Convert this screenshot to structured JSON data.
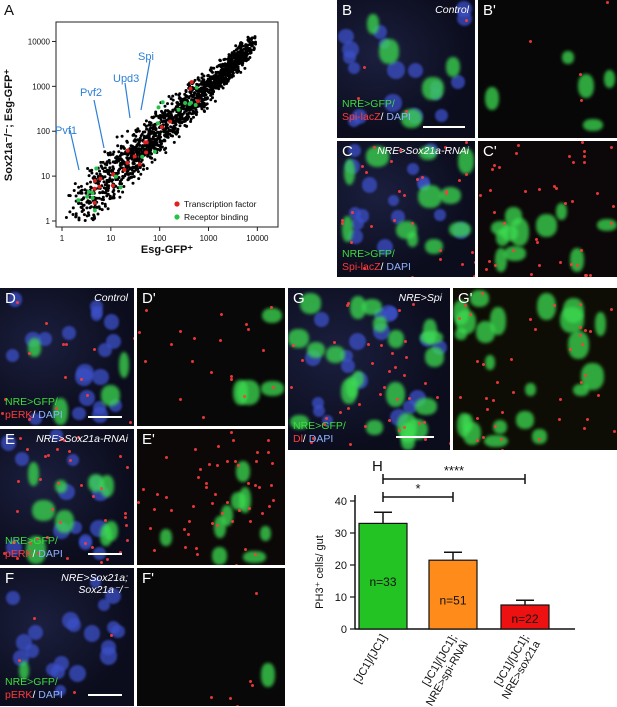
{
  "labels": {
    "A": "A",
    "B": "B",
    "Bp": "B'",
    "C": "C",
    "Cp": "C'",
    "D": "D",
    "Dp": "D'",
    "E": "E",
    "Ep": "E'",
    "F": "F",
    "Fp": "F'",
    "G": "G",
    "Gp": "G'",
    "H": "H"
  },
  "conditions": {
    "control": "Control",
    "sox21a_rnai": "NRE>Sox21a-RNAi",
    "sox21a_line1": "NRE>Sox21a;",
    "sox21a_line2": "Sox21a⁻/⁻",
    "spi": "NRE>Spi"
  },
  "stains": {
    "gfp": "NRE>GFP/",
    "spi_lacz": "Spi-lacZ",
    "perk": "pERK",
    "dl": "Dl",
    "dapi": "DAPI",
    "sep": "/ "
  },
  "colors": {
    "green": "#3ddc3d",
    "red": "#ff3a3a",
    "blue": "#8fb3ff",
    "tf": "#e0221f",
    "rb": "#27c24a",
    "bar1": "#22c322",
    "bar2": "#ff8c1a",
    "bar3": "#ee1111"
  },
  "scatter": {
    "ylabel": "Sox21a⁻/⁻; Esg-GFP⁺",
    "xlabel": "Esg-GFP⁺",
    "xticks": [
      "1",
      "10",
      "100",
      "1000",
      "10000"
    ],
    "yticks": [
      "1",
      "10",
      "100",
      "1000",
      "10000"
    ],
    "annotations": [
      "Pvf1",
      "Pvf2",
      "Upd3",
      "Spi"
    ],
    "legend": [
      "Transcription factor",
      "Receptor binding"
    ]
  },
  "chart_data": {
    "type": "bar",
    "ylabel": "PH3⁺ cells/ gut",
    "categories": [
      "[JC1]/[JC1]",
      "[JC1]/[JC1];",
      "[JC1]/[JC1];"
    ],
    "category_sublabels": [
      "",
      "NRE>spi-RNAi",
      "NRE>sox21a"
    ],
    "values": [
      33,
      21.5,
      7.5
    ],
    "errors": [
      3.5,
      2.5,
      1.5
    ],
    "n_labels": [
      "n=33",
      "n=51",
      "n=22"
    ],
    "yticks": [
      "0",
      "10",
      "20",
      "30",
      "40"
    ],
    "ylim": [
      0,
      40
    ],
    "significance": [
      "*",
      "****"
    ]
  }
}
